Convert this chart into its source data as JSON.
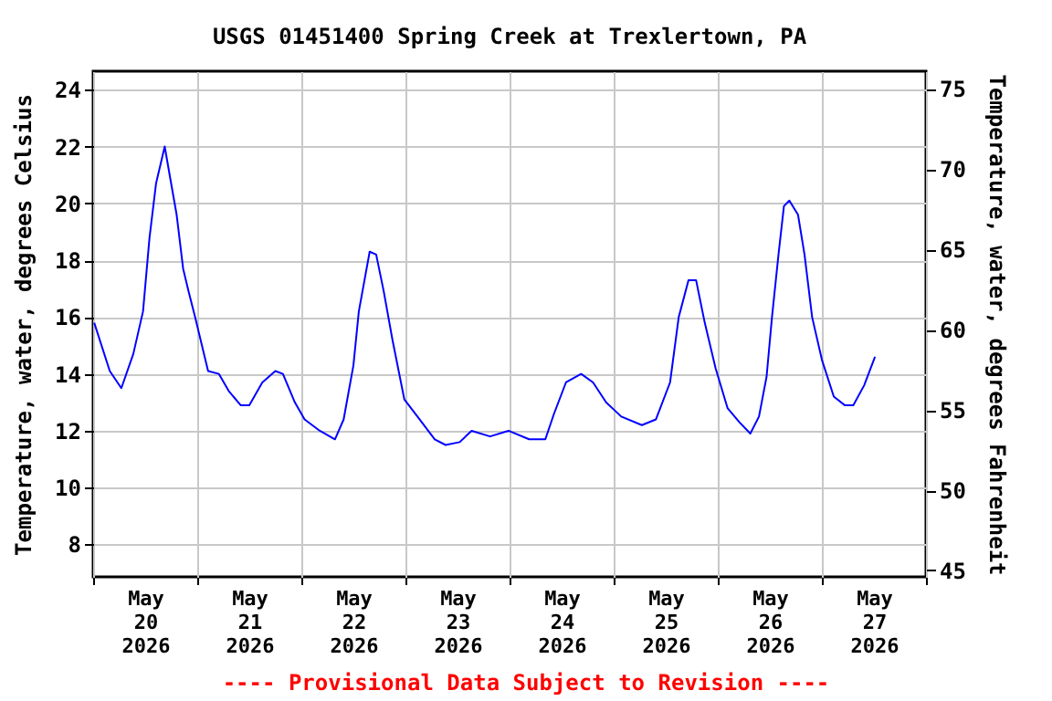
{
  "chart_data": {
    "type": "line",
    "title": "USGS 01451400 Spring Creek at Trexlertown, PA",
    "ylabel": "Temperature, water, degrees Celsius",
    "y2label": "Temperature, water, degrees Fahrenheit",
    "x": [
      "2026-05-20T00:15",
      "2026-05-20T03:50",
      "2026-05-20T06:30",
      "2026-05-20T09:15",
      "2026-05-20T11:30",
      "2026-05-20T13:00",
      "2026-05-20T14:30",
      "2026-05-20T16:30",
      "2026-05-20T17:45",
      "2026-05-20T19:15",
      "2026-05-20T20:45",
      "2026-05-20T22:00",
      "2026-05-20T23:30",
      "2026-05-21T02:30",
      "2026-05-21T05:00",
      "2026-05-21T07:15",
      "2026-05-21T10:00",
      "2026-05-21T12:00",
      "2026-05-21T15:00",
      "2026-05-21T18:00",
      "2026-05-21T19:45",
      "2026-05-21T22:30",
      "2026-05-22T00:45",
      "2026-05-22T04:15",
      "2026-05-22T07:45",
      "2026-05-22T09:45",
      "2026-05-22T12:00",
      "2026-05-22T13:15",
      "2026-05-22T15:45",
      "2026-05-22T17:15",
      "2026-05-22T19:00",
      "2026-05-22T21:00",
      "2026-05-22T23:45",
      "2026-05-23T03:15",
      "2026-05-23T06:45",
      "2026-05-23T09:15",
      "2026-05-23T12:30",
      "2026-05-23T15:15",
      "2026-05-23T19:30",
      "2026-05-23T23:45",
      "2026-05-24T04:30",
      "2026-05-24T08:15",
      "2026-05-24T10:15",
      "2026-05-24T13:00",
      "2026-05-24T16:30",
      "2026-05-24T19:15",
      "2026-05-24T22:15",
      "2026-05-25T01:45",
      "2026-05-25T06:30",
      "2026-05-25T09:45",
      "2026-05-25T13:00",
      "2026-05-25T15:00",
      "2026-05-25T17:15",
      "2026-05-25T19:00",
      "2026-05-25T21:00",
      "2026-05-25T23:30",
      "2026-05-26T02:15",
      "2026-05-26T05:00",
      "2026-05-26T07:30",
      "2026-05-26T09:30",
      "2026-05-26T11:15",
      "2026-05-26T12:30",
      "2026-05-26T14:00",
      "2026-05-26T15:15",
      "2026-05-26T16:30",
      "2026-05-26T18:30",
      "2026-05-26T20:00",
      "2026-05-26T21:45",
      "2026-05-27T00:00",
      "2026-05-27T02:45",
      "2026-05-27T05:15",
      "2026-05-27T07:15",
      "2026-05-27T09:45",
      "2026-05-27T12:15"
    ],
    "series": [
      {
        "color": "#0000ff",
        "values": [
          15.8,
          14.1,
          13.5,
          14.7,
          16.2,
          18.8,
          20.7,
          22.0,
          20.9,
          19.6,
          17.7,
          16.9,
          16.0,
          14.1,
          14.0,
          13.4,
          12.9,
          12.9,
          13.7,
          14.1,
          14.0,
          13.0,
          12.4,
          12.0,
          11.7,
          12.4,
          14.3,
          16.2,
          18.3,
          18.2,
          16.9,
          15.2,
          13.1,
          12.4,
          11.7,
          11.5,
          11.6,
          12.0,
          11.8,
          12.0,
          11.7,
          11.7,
          12.6,
          13.7,
          14.0,
          13.7,
          13.0,
          12.5,
          12.2,
          12.4,
          13.7,
          16.0,
          17.3,
          17.3,
          15.8,
          14.2,
          12.8,
          12.3,
          11.9,
          12.5,
          13.9,
          16.0,
          18.2,
          19.9,
          20.1,
          19.6,
          18.2,
          16.0,
          14.5,
          13.2,
          12.9,
          12.9,
          13.6,
          14.6
        ]
      }
    ],
    "xlim": [
      "2026-05-20",
      "2026-05-28"
    ],
    "xticks": [
      {
        "value": "2026-05-20",
        "label": null
      },
      {
        "value": "2026-05-20T12:00",
        "label": "May 20 2026"
      },
      {
        "value": "2026-05-21",
        "label": null
      },
      {
        "value": "2026-05-21T12:00",
        "label": "May 21 2026"
      },
      {
        "value": "2026-05-22",
        "label": null
      },
      {
        "value": "2026-05-22T12:00",
        "label": "May 22 2026"
      },
      {
        "value": "2026-05-23",
        "label": null
      },
      {
        "value": "2026-05-23T12:00",
        "label": "May 23 2026"
      },
      {
        "value": "2026-05-24",
        "label": null
      },
      {
        "value": "2026-05-24T12:00",
        "label": "May 24 2026"
      },
      {
        "value": "2026-05-25",
        "label": null
      },
      {
        "value": "2026-05-25T12:00",
        "label": "May 25 2026"
      },
      {
        "value": "2026-05-26",
        "label": null
      },
      {
        "value": "2026-05-26T12:00",
        "label": "May 26 2026"
      },
      {
        "value": "2026-05-27",
        "label": null
      },
      {
        "value": "2026-05-27T12:00",
        "label": "May 27 2026"
      },
      {
        "value": "2026-05-28",
        "label": null
      }
    ],
    "ylim": [
      6.86,
      24.65
    ],
    "yticks": [
      8,
      10,
      12,
      14,
      16,
      18,
      20,
      22,
      24
    ],
    "y2lim": [
      44.6,
      76.1
    ],
    "y2ticks": [
      45,
      50,
      55,
      60,
      65,
      70,
      75
    ],
    "grid": true,
    "line_style": "solid",
    "annotations": [
      "---- Provisional Data Subject to Revision ----"
    ]
  }
}
